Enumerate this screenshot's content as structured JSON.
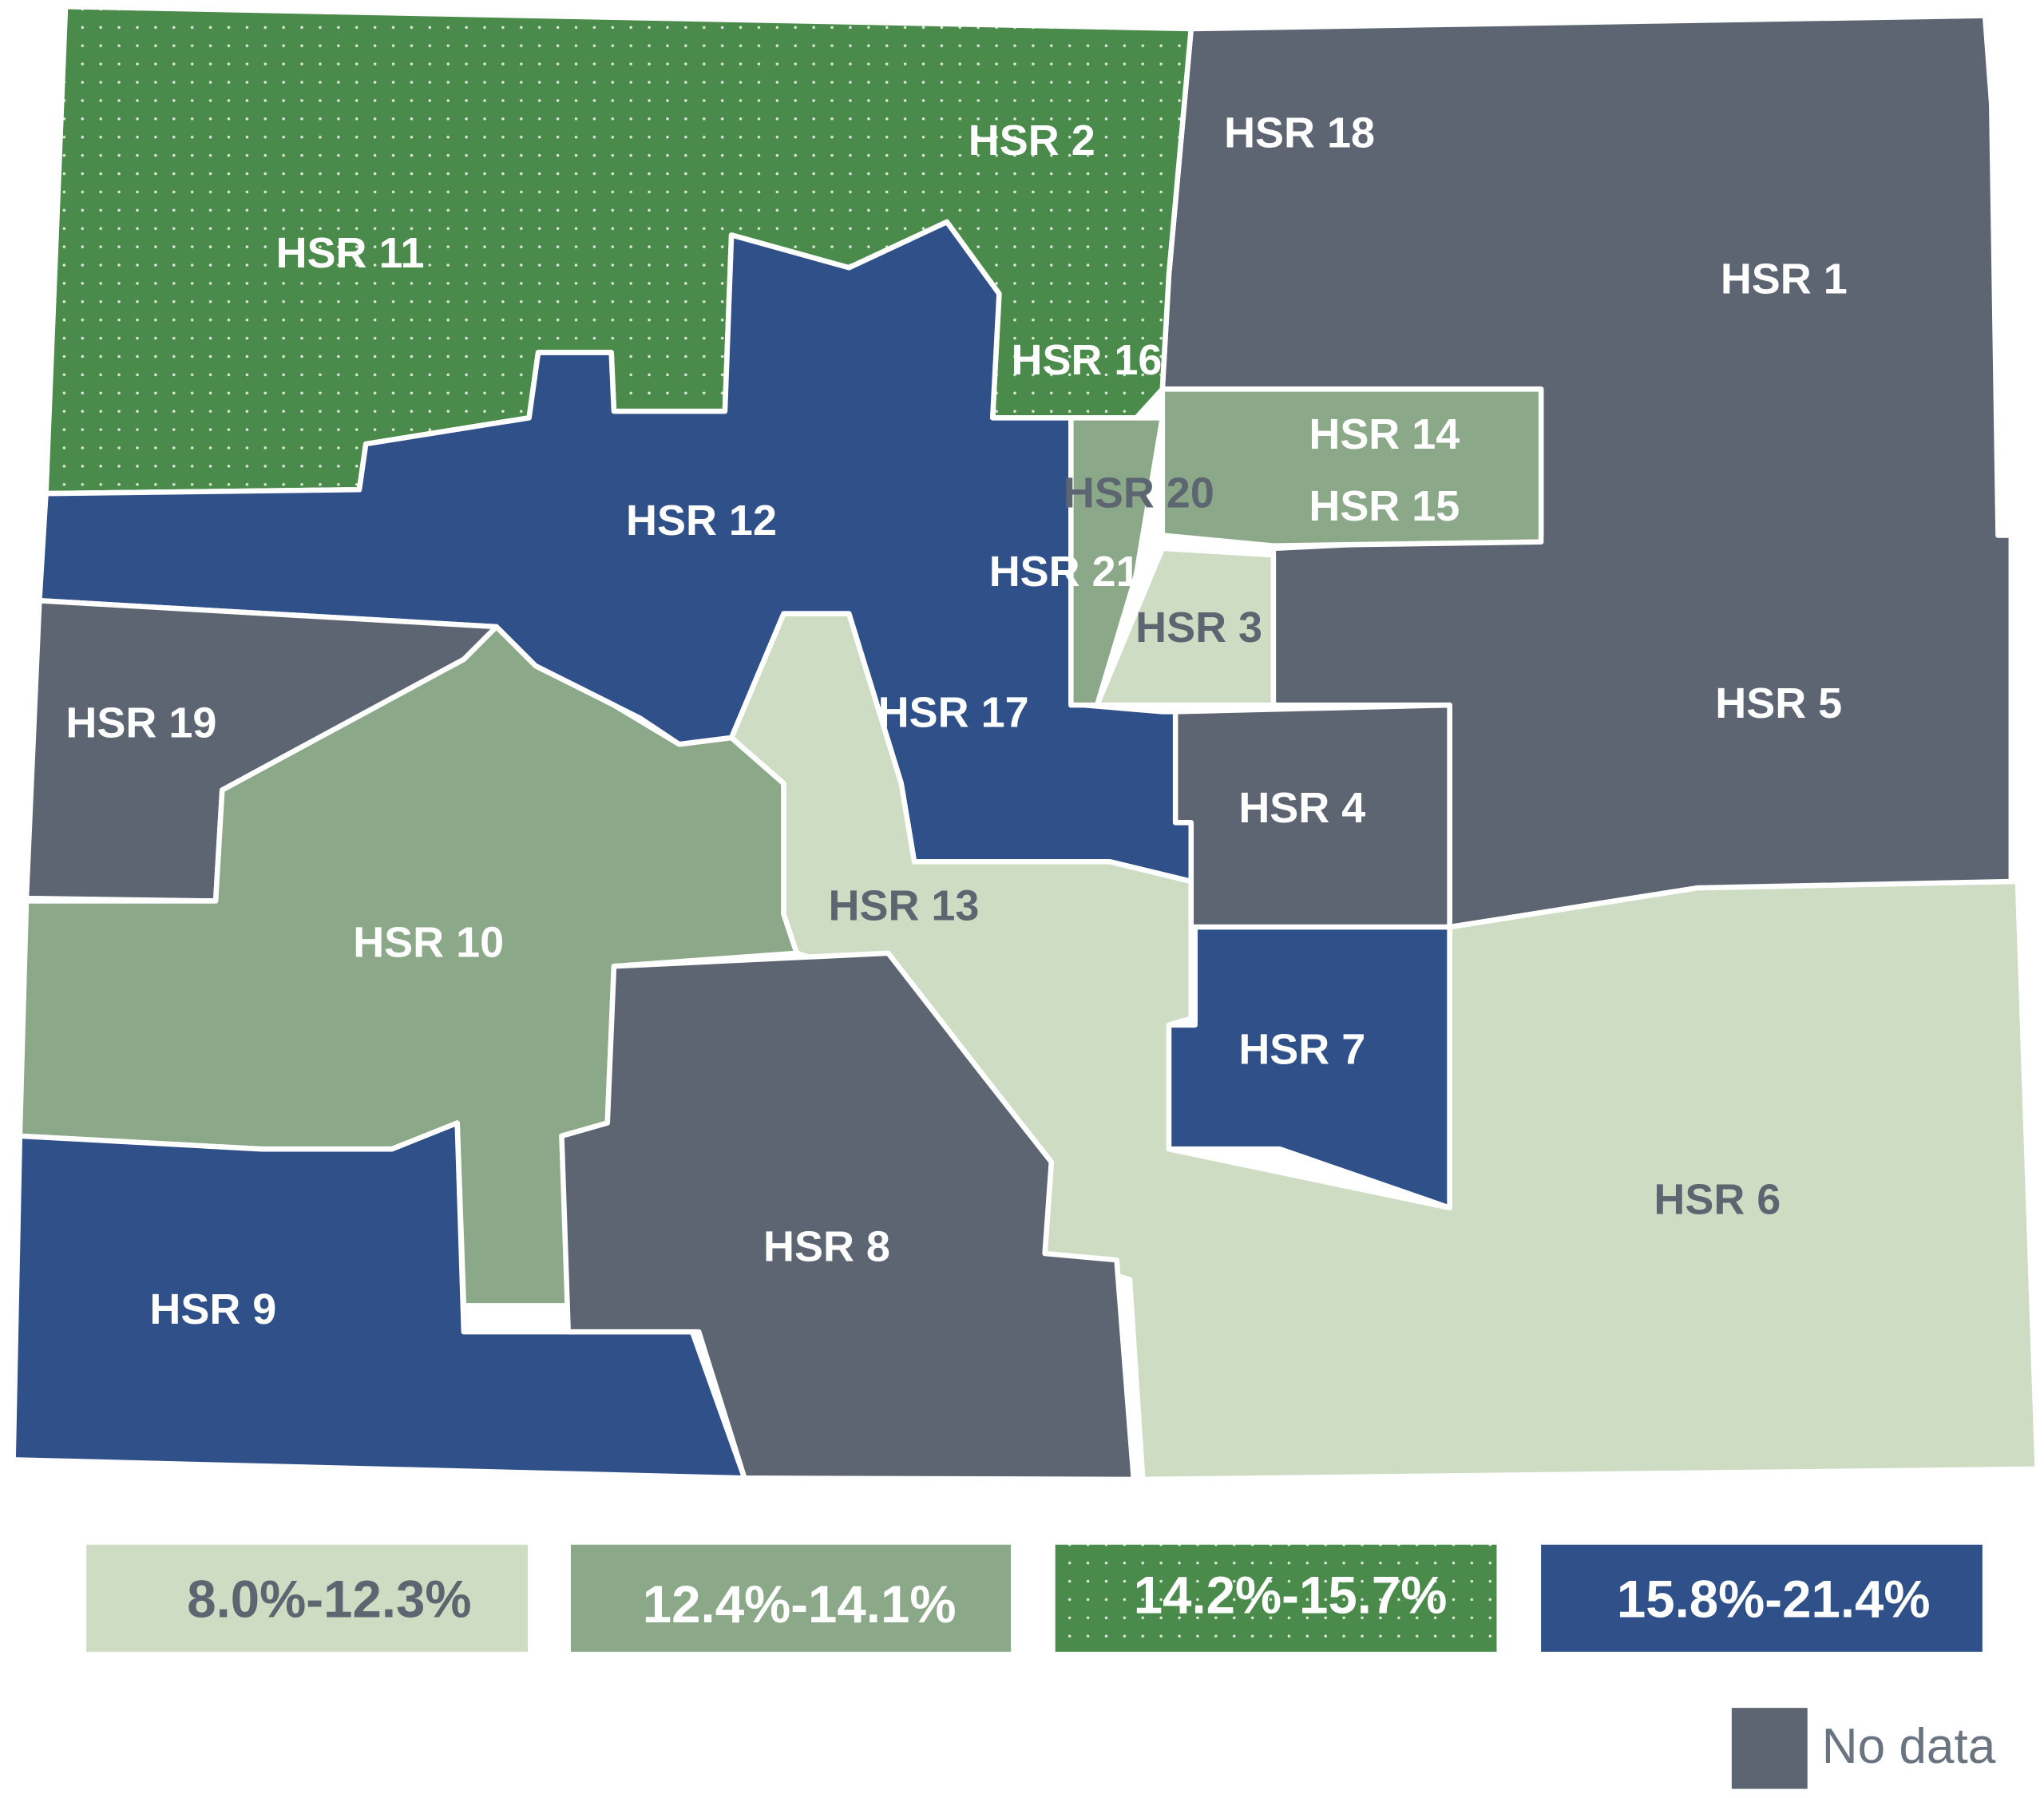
{
  "regions": [
    "HSR 11",
    "HSR 2",
    "HSR 18",
    "HSR 1",
    "HSR 16",
    "HSR 14",
    "HSR 20",
    "HSR 15",
    "HSR 12",
    "HSR 21",
    "HSR 3",
    "HSR 19",
    "HSR 17",
    "HSR 5",
    "HSR 4",
    "HSR 10",
    "HSR 13",
    "HSR 7",
    "HSR 6",
    "HSR 8",
    "HSR 9"
  ],
  "legend": {
    "items": [
      "8.0%-12.3%",
      "12.4%-14.1%",
      "14.2%-15.7%",
      "15.8%-21.4%"
    ],
    "no_data": "No data"
  }
}
